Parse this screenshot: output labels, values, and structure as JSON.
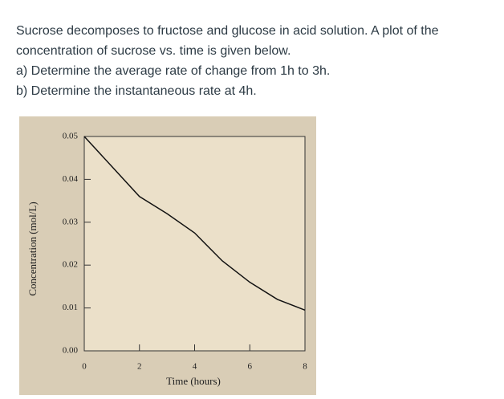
{
  "question": {
    "lines": [
      "Sucrose decomposes to fructose and glucose in acid solution. A plot of the",
      "concentration of sucrose vs. time is given below.",
      "a) Determine the average rate of change from 1h to 3h.",
      "b) Determine the instantaneous rate at 4h."
    ]
  },
  "chart_data": {
    "type": "line",
    "xlabel": "Time (hours)",
    "ylabel": "Concentration (mol/L)",
    "x": [
      0,
      1,
      2,
      3,
      4,
      5,
      6,
      7,
      8
    ],
    "series": [
      {
        "color": "#111111",
        "values": [
          0.05,
          0.043,
          0.036,
          0.032,
          0.0275,
          0.021,
          0.016,
          0.012,
          0.0095
        ]
      }
    ],
    "xlim": [
      0,
      8
    ],
    "ylim": [
      0,
      0.05
    ],
    "xticks": [
      0,
      2,
      4,
      6,
      8
    ],
    "yticks": [
      {
        "value": 0,
        "label": "0.00"
      },
      0.01,
      0.02,
      0.03,
      0.04,
      0.05
    ]
  }
}
